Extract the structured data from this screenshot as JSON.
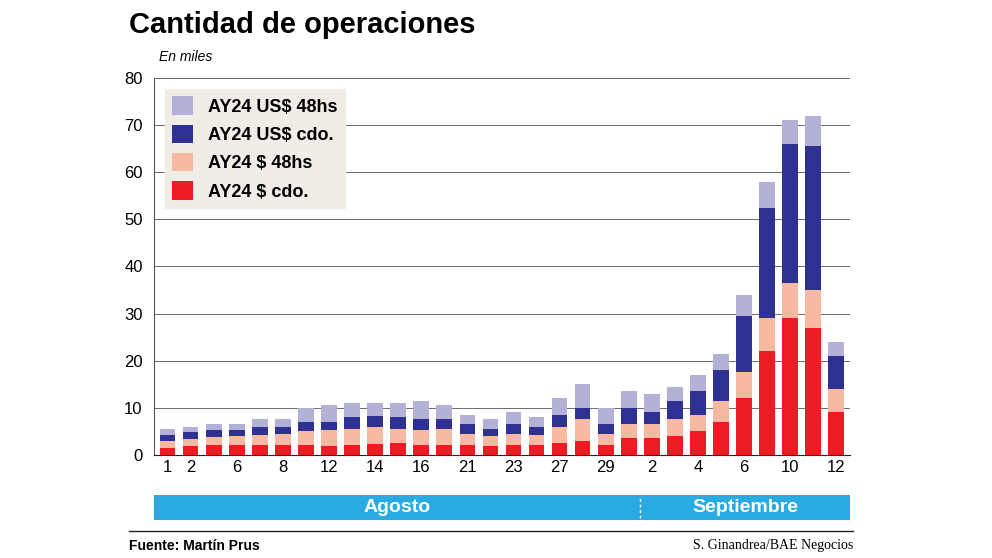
{
  "chart_data": {
    "type": "bar",
    "title": "Cantidad de operaciones",
    "subtitle": "En miles",
    "source": "Fuente: Martín Prus",
    "credit": "S. Ginandrea/BAE Negocios",
    "stacked": true,
    "grid": true,
    "legend": "upper left",
    "categories": [
      "1",
      "2",
      null,
      "6",
      null,
      "8",
      null,
      "12",
      null,
      "14",
      null,
      "16",
      null,
      "21",
      null,
      "23",
      null,
      "27",
      null,
      "29",
      null,
      "2",
      null,
      "4",
      null,
      "6",
      null,
      "10",
      null,
      "12"
    ],
    "x_groups": [
      {
        "label": "Agosto",
        "count": 21
      },
      {
        "label": "Septiembre",
        "count": 9
      }
    ],
    "ylim": [
      0,
      80
    ],
    "yticks": [
      0,
      10,
      20,
      30,
      40,
      50,
      60,
      70,
      80
    ],
    "series": [
      {
        "name": "AY24 US$ 48hs",
        "color": "#b4b1d9",
        "values": [
          1.2,
          1.2,
          1.3,
          1.2,
          1.7,
          1.7,
          3,
          3.5,
          3,
          2.7,
          3,
          4,
          3,
          2,
          2,
          2.5,
          2,
          3.5,
          5,
          3.5,
          3.5,
          4,
          3,
          3.5,
          3.5,
          4.5,
          5.5,
          5,
          6.5,
          3
        ]
      },
      {
        "name": "AY24 US$ cdo.",
        "color": "#2e3192",
        "values": [
          1.3,
          1.5,
          1.5,
          1.3,
          1.5,
          1.3,
          2,
          1.7,
          2.5,
          2.5,
          2.5,
          2.2,
          2,
          2,
          1.5,
          2,
          1.7,
          2.5,
          2.5,
          2,
          3.5,
          2.5,
          4,
          5,
          6.5,
          12,
          23.5,
          29.5,
          30.5,
          7
        ]
      },
      {
        "name": "AY24 $ 48hs",
        "color": "#f7b9a1",
        "values": [
          1.5,
          1.5,
          1.7,
          2,
          2.3,
          2.5,
          3,
          3.5,
          3.5,
          3.5,
          3,
          3.3,
          3.5,
          2.5,
          2.2,
          2.5,
          2.3,
          3.5,
          4.5,
          2.5,
          3,
          3,
          3.5,
          3.5,
          4.5,
          5.5,
          7,
          7.5,
          8,
          5
        ]
      },
      {
        "name": "AY24 $ cdo.",
        "color": "#ed1c24",
        "values": [
          1.5,
          1.8,
          2,
          2,
          2,
          2,
          2,
          1.8,
          2,
          2.3,
          2.5,
          2,
          2,
          2,
          1.8,
          2,
          2,
          2.5,
          3,
          2,
          3.5,
          3.5,
          4,
          5,
          7,
          12,
          22,
          29,
          27,
          9
        ]
      }
    ]
  }
}
